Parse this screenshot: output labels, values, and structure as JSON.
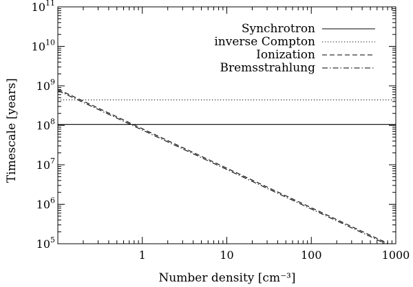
{
  "chart_data": {
    "type": "line",
    "title": "",
    "xlabel": "Number density [cm⁻³]",
    "ylabel": "Timescale [years]",
    "xscale": "log",
    "yscale": "log",
    "xlim": [
      0.1,
      1000
    ],
    "ylim": [
      100000,
      100000000000
    ],
    "grid": false,
    "legend_position": "top-right",
    "x_ticks": [
      {
        "value": 1,
        "label": "1"
      },
      {
        "value": 10,
        "label": "10"
      },
      {
        "value": 100,
        "label": "100"
      },
      {
        "value": 1000,
        "label": "1000"
      }
    ],
    "y_ticks": [
      {
        "value": 100000,
        "base": "10",
        "exp": "5"
      },
      {
        "value": 1000000,
        "base": "10",
        "exp": "6"
      },
      {
        "value": 10000000,
        "base": "10",
        "exp": "7"
      },
      {
        "value": 100000000,
        "base": "10",
        "exp": "8"
      },
      {
        "value": 1000000000,
        "base": "10",
        "exp": "9"
      },
      {
        "value": 10000000000,
        "base": "10",
        "exp": "10"
      },
      {
        "value": 100000000000,
        "base": "10",
        "exp": "11"
      }
    ],
    "series": [
      {
        "name": "Synchrotron",
        "style": "solid",
        "color": "#000000",
        "x": [
          0.1,
          1000
        ],
        "y": [
          105000000,
          105000000
        ]
      },
      {
        "name": "inverse Compton",
        "style": "dotted",
        "color": "#000000",
        "x": [
          0.1,
          1000
        ],
        "y": [
          440000000,
          440000000
        ]
      },
      {
        "name": "Ionization",
        "style": "dashed",
        "color": "#000000",
        "x": [
          0.1,
          1000
        ],
        "y": [
          820000000,
          82000
        ]
      },
      {
        "name": "Bremsstrahlung",
        "style": "dashdot",
        "color": "#000000",
        "x": [
          0.1,
          1000
        ],
        "y": [
          760000000,
          76000
        ]
      }
    ]
  }
}
